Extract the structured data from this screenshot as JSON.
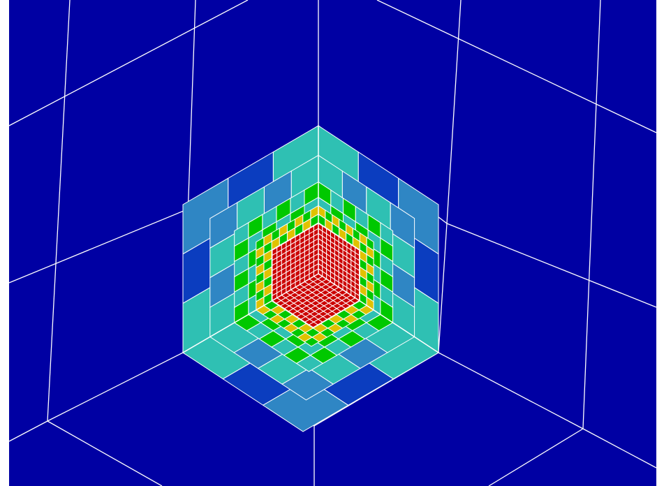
{
  "scene": {
    "kind": "mesh-refinement-render",
    "background_color": "#0000a3",
    "frame_color": "#ffffff",
    "grid_line_color": "#ffffff",
    "refinement_levels": 5,
    "color_scale": [
      "#0000a8",
      "#0b3dbf",
      "#2f86c4",
      "#2fc0b3",
      "#00c800",
      "#e0c200",
      "#cc0000"
    ]
  }
}
